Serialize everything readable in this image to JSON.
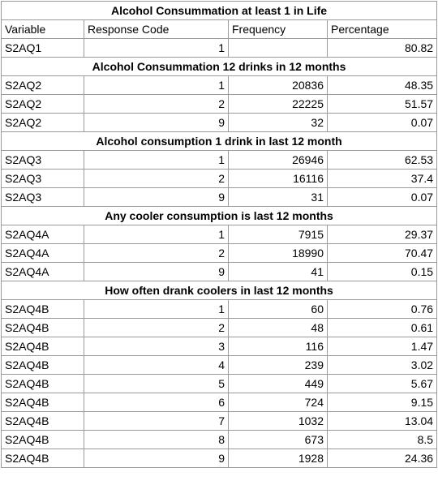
{
  "header": {
    "variable": "Variable",
    "response_code": "Response Code",
    "frequency": "Frequency",
    "percentage": "Percentage"
  },
  "sections": [
    {
      "title": "Alcohol Consummation at least 1 in Life",
      "show_header": true,
      "rows": [
        {
          "variable": "S2AQ1",
          "code": "1",
          "frequency": "",
          "percentage": "80.82"
        }
      ]
    },
    {
      "title": "Alcohol Consummation 12 drinks in 12 months",
      "show_header": false,
      "rows": [
        {
          "variable": "S2AQ2",
          "code": "1",
          "frequency": "20836",
          "percentage": "48.35"
        },
        {
          "variable": "S2AQ2",
          "code": "2",
          "frequency": "22225",
          "percentage": "51.57"
        },
        {
          "variable": "S2AQ2",
          "code": "9",
          "frequency": "32",
          "percentage": "0.07"
        }
      ]
    },
    {
      "title": "Alcohol consumption 1 drink in last 12 month",
      "show_header": false,
      "rows": [
        {
          "variable": "S2AQ3",
          "code": "1",
          "frequency": "26946",
          "percentage": "62.53"
        },
        {
          "variable": "S2AQ3",
          "code": "2",
          "frequency": "16116",
          "percentage": "37.4"
        },
        {
          "variable": "S2AQ3",
          "code": "9",
          "frequency": "31",
          "percentage": "0.07"
        }
      ]
    },
    {
      "title": "Any cooler consumption is last 12 months",
      "show_header": false,
      "rows": [
        {
          "variable": "S2AQ4A",
          "code": "1",
          "frequency": "7915",
          "percentage": "29.37"
        },
        {
          "variable": "S2AQ4A",
          "code": "2",
          "frequency": "18990",
          "percentage": "70.47"
        },
        {
          "variable": "S2AQ4A",
          "code": "9",
          "frequency": "41",
          "percentage": "0.15"
        }
      ]
    },
    {
      "title": "How often drank coolers in last 12 months",
      "show_header": false,
      "rows": [
        {
          "variable": "S2AQ4B",
          "code": "1",
          "frequency": "60",
          "percentage": "0.76"
        },
        {
          "variable": "S2AQ4B",
          "code": "2",
          "frequency": "48",
          "percentage": "0.61"
        },
        {
          "variable": "S2AQ4B",
          "code": "3",
          "frequency": "116",
          "percentage": "1.47"
        },
        {
          "variable": "S2AQ4B",
          "code": "4",
          "frequency": "239",
          "percentage": "3.02"
        },
        {
          "variable": "S2AQ4B",
          "code": "5",
          "frequency": "449",
          "percentage": "5.67"
        },
        {
          "variable": "S2AQ4B",
          "code": "6",
          "frequency": "724",
          "percentage": "9.15"
        },
        {
          "variable": "S2AQ4B",
          "code": "7",
          "frequency": "1032",
          "percentage": "13.04"
        },
        {
          "variable": "S2AQ4B",
          "code": "8",
          "frequency": "673",
          "percentage": "8.5"
        },
        {
          "variable": "S2AQ4B",
          "code": "9",
          "frequency": "1928",
          "percentage": "24.36"
        }
      ]
    }
  ]
}
